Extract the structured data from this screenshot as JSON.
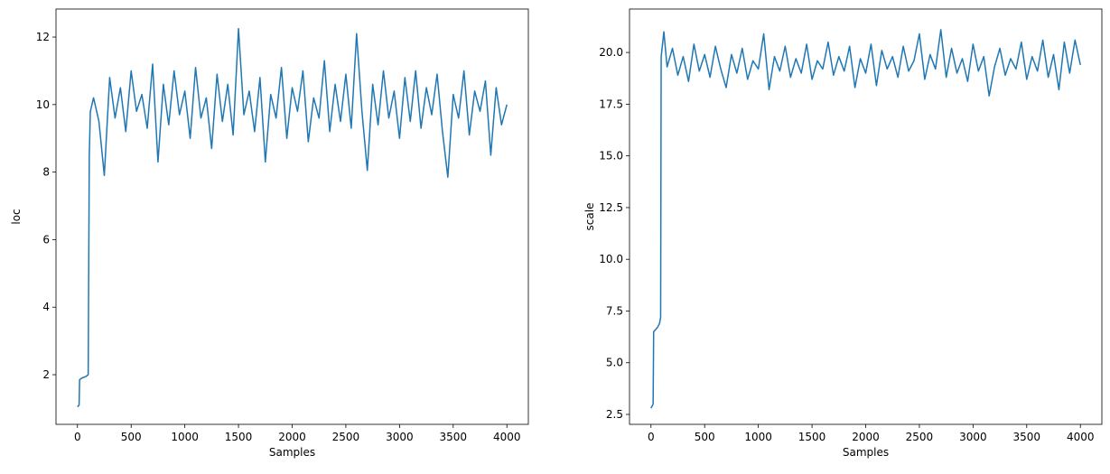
{
  "chart_data": [
    {
      "type": "line",
      "xlabel": "Samples",
      "ylabel": "loc",
      "color": "#1f77b4",
      "x": [
        0,
        15,
        20,
        40,
        80,
        100,
        110,
        120,
        150,
        200,
        250,
        300,
        350,
        400,
        450,
        500,
        550,
        600,
        650,
        700,
        750,
        800,
        850,
        900,
        950,
        1000,
        1050,
        1100,
        1150,
        1200,
        1250,
        1300,
        1350,
        1400,
        1450,
        1500,
        1550,
        1600,
        1650,
        1700,
        1750,
        1800,
        1850,
        1900,
        1950,
        2000,
        2050,
        2100,
        2150,
        2200,
        2250,
        2300,
        2350,
        2400,
        2450,
        2500,
        2550,
        2600,
        2650,
        2700,
        2750,
        2800,
        2850,
        2900,
        2950,
        3000,
        3050,
        3100,
        3150,
        3200,
        3250,
        3300,
        3350,
        3400,
        3450,
        3500,
        3550,
        3600,
        3650,
        3700,
        3750,
        3800,
        3850,
        3900,
        3950,
        4000
      ],
      "values": [
        1.05,
        1.1,
        1.85,
        1.9,
        1.95,
        2.0,
        8.5,
        9.8,
        10.2,
        9.5,
        7.9,
        10.8,
        9.6,
        10.5,
        9.2,
        11.0,
        9.8,
        10.3,
        9.3,
        11.2,
        8.3,
        10.6,
        9.4,
        11.0,
        9.7,
        10.4,
        9.0,
        11.1,
        9.6,
        10.2,
        8.7,
        10.9,
        9.5,
        10.6,
        9.1,
        12.25,
        9.7,
        10.4,
        9.2,
        10.8,
        8.3,
        10.3,
        9.6,
        11.1,
        9.0,
        10.5,
        9.8,
        11.0,
        8.9,
        10.2,
        9.6,
        11.3,
        9.2,
        10.6,
        9.5,
        10.9,
        9.3,
        12.1,
        9.8,
        8.05,
        10.6,
        9.4,
        11.0,
        9.6,
        10.4,
        9.0,
        10.8,
        9.5,
        11.0,
        9.3,
        10.5,
        9.7,
        10.9,
        9.2,
        7.85,
        10.3,
        9.6,
        11.0,
        9.1,
        10.4,
        9.8,
        10.7,
        8.5,
        10.5,
        9.4,
        10.0
      ],
      "xlim": [
        -200,
        4200
      ],
      "xticks": [
        0,
        500,
        1000,
        1500,
        2000,
        2500,
        3000,
        3500,
        4000
      ],
      "ylim": [
        0.53,
        12.83
      ],
      "yticks": [
        2,
        4,
        6,
        8,
        10,
        12
      ]
    },
    {
      "type": "line",
      "xlabel": "Samples",
      "ylabel": "scale",
      "color": "#1f77b4",
      "x": [
        0,
        20,
        25,
        60,
        80,
        90,
        95,
        120,
        150,
        200,
        250,
        300,
        350,
        400,
        450,
        500,
        550,
        600,
        650,
        700,
        750,
        800,
        850,
        900,
        950,
        1000,
        1050,
        1100,
        1150,
        1200,
        1250,
        1300,
        1350,
        1400,
        1450,
        1500,
        1550,
        1600,
        1650,
        1700,
        1750,
        1800,
        1850,
        1900,
        1950,
        2000,
        2050,
        2100,
        2150,
        2200,
        2250,
        2300,
        2350,
        2400,
        2450,
        2500,
        2550,
        2600,
        2650,
        2700,
        2750,
        2800,
        2850,
        2900,
        2950,
        3000,
        3050,
        3100,
        3150,
        3200,
        3250,
        3300,
        3350,
        3400,
        3450,
        3500,
        3550,
        3600,
        3650,
        3700,
        3750,
        3800,
        3850,
        3900,
        3950,
        4000
      ],
      "values": [
        2.8,
        3.0,
        6.5,
        6.7,
        6.9,
        7.2,
        19.8,
        21.0,
        19.3,
        20.2,
        18.9,
        19.8,
        18.6,
        20.4,
        19.1,
        19.9,
        18.8,
        20.3,
        19.2,
        18.3,
        19.9,
        19.0,
        20.2,
        18.7,
        19.6,
        19.2,
        20.9,
        18.2,
        19.8,
        19.1,
        20.3,
        18.8,
        19.7,
        19.0,
        20.4,
        18.7,
        19.6,
        19.2,
        20.5,
        18.9,
        19.8,
        19.1,
        20.3,
        18.3,
        19.7,
        19.0,
        20.4,
        18.4,
        20.1,
        19.2,
        19.8,
        18.8,
        20.3,
        19.1,
        19.6,
        20.9,
        18.7,
        19.9,
        19.2,
        21.1,
        18.8,
        20.2,
        19.0,
        19.7,
        18.6,
        20.4,
        19.1,
        19.8,
        17.9,
        19.3,
        20.2,
        18.9,
        19.7,
        19.2,
        20.5,
        18.7,
        19.8,
        19.1,
        20.6,
        18.8,
        19.9,
        18.2,
        20.5,
        19.0,
        20.6,
        19.4
      ],
      "xlim": [
        -200,
        4200
      ],
      "xticks": [
        0,
        500,
        1000,
        1500,
        2000,
        2500,
        3000,
        3500,
        4000
      ],
      "ylim": [
        2.02,
        22.1
      ],
      "yticks": [
        2.5,
        {
          "value": 5,
          "label": "5.0"
        },
        7.5,
        {
          "value": 10,
          "label": "10.0"
        },
        12.5,
        {
          "value": 15,
          "label": "15.0"
        },
        17.5,
        {
          "value": 20,
          "label": "20.0"
        }
      ]
    }
  ]
}
